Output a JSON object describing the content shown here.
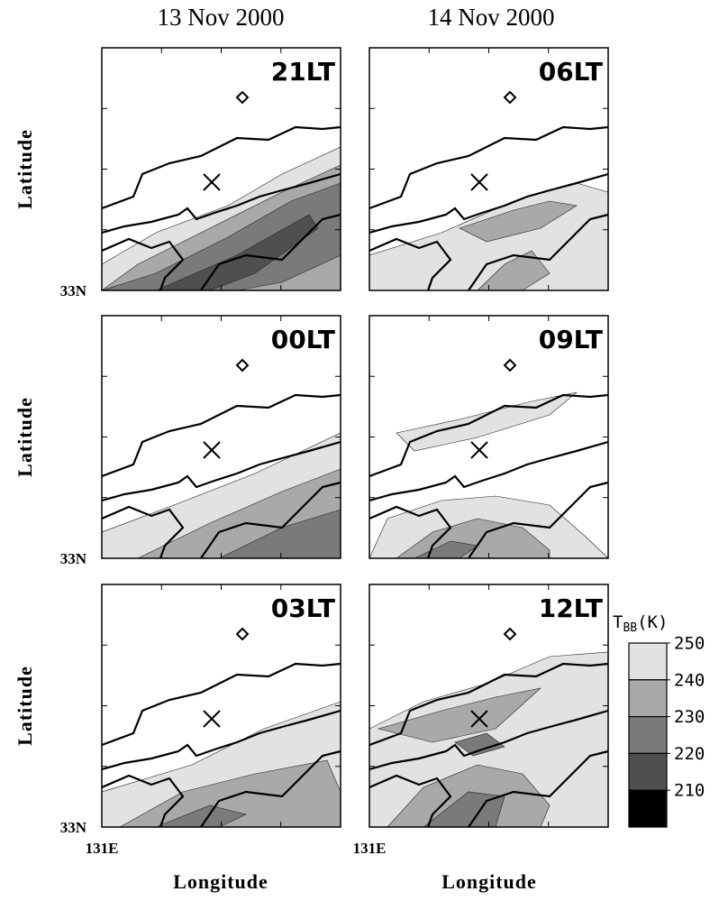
{
  "figure": {
    "columns": [
      "13 Nov 2000",
      "14 Nov 2000"
    ],
    "panels": [
      {
        "label": "21LT"
      },
      {
        "label": "06LT"
      },
      {
        "label": "00LT"
      },
      {
        "label": "09LT"
      },
      {
        "label": "03LT"
      },
      {
        "label": "12LT"
      }
    ],
    "y_label": "Latitude",
    "y_tick": "33N",
    "x_tick": "131E",
    "x_label": "Longitude",
    "colorbar": {
      "title": "T",
      "title_sub": "BB",
      "title_unit": "(K)",
      "levels": [
        250,
        240,
        230,
        220,
        210
      ],
      "colors": [
        "#e2e2e2",
        "#a9a9a9",
        "#7a7a7a",
        "#4f4f4f",
        "#000000"
      ]
    }
  }
}
